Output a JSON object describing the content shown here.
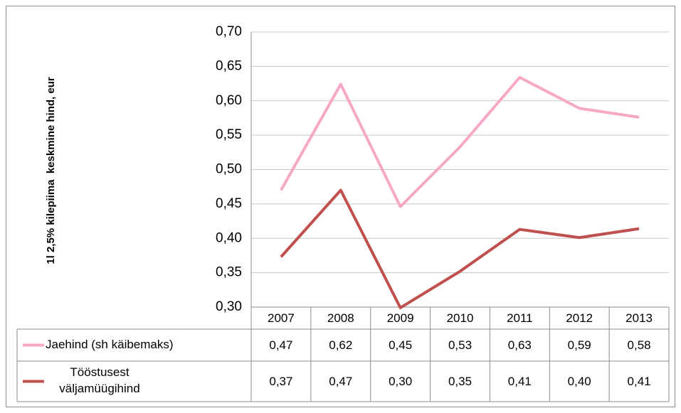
{
  "chart_data": {
    "type": "line",
    "y_label": "1l 2,5% kilepiima  keskmine hind, eur",
    "categories": [
      "2007",
      "2008",
      "2009",
      "2010",
      "2011",
      "2012",
      "2013"
    ],
    "series": [
      {
        "name": "Jaehind (sh käibemaks)",
        "color": "#f7a8c7",
        "values": [
          0.47,
          0.624,
          0.446,
          0.533,
          0.634,
          0.589,
          0.576
        ],
        "value_labels": [
          "0,47",
          "0,62",
          "0,45",
          "0,53",
          "0,63",
          "0,59",
          "0,58"
        ]
      },
      {
        "name": "Tööstusest väljamüügihind",
        "color": "#c0504d",
        "values": [
          0.373,
          0.47,
          0.299,
          0.352,
          0.413,
          0.401,
          0.414
        ],
        "value_labels": [
          "0,37",
          "0,47",
          "0,30",
          "0,35",
          "0,41",
          "0,40",
          "0,41"
        ]
      }
    ],
    "ylim": [
      0.3,
      0.7
    ],
    "yticks": [
      {
        "value": 0.3,
        "label": "0,30"
      },
      {
        "value": 0.35,
        "label": "0,35"
      },
      {
        "value": 0.4,
        "label": "0,40"
      },
      {
        "value": 0.45,
        "label": "0,45"
      },
      {
        "value": 0.5,
        "label": "0,50"
      },
      {
        "value": 0.55,
        "label": "0,55"
      },
      {
        "value": 0.6,
        "label": "0,60"
      },
      {
        "value": 0.65,
        "label": "0,65"
      },
      {
        "value": 0.7,
        "label": "0,70"
      }
    ],
    "grid": true
  }
}
